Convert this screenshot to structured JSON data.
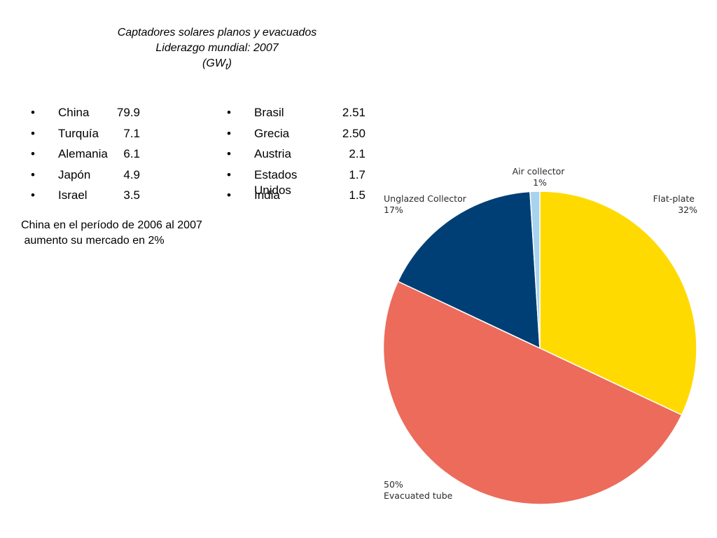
{
  "title": {
    "line1": "Captadores solares planos y evacuados",
    "line2": "Liderazgo mundial: 2007",
    "unit_open": "(GW",
    "unit_sub": "t",
    "unit_close": ")"
  },
  "bullet_symbol": "•",
  "countries_left": [
    {
      "name": "China",
      "value": "79.9"
    },
    {
      "name": "Turquía",
      "value": "7.1"
    },
    {
      "name": "Alemania",
      "value": "6.1"
    },
    {
      "name": "Japón",
      "value": "4.9"
    },
    {
      "name": "Israel",
      "value": "3.5"
    }
  ],
  "countries_right": [
    {
      "name": "Brasil",
      "value": "2.51"
    },
    {
      "name": "Grecia",
      "value": "2.50"
    },
    {
      "name": "Austria",
      "value": "2.1"
    },
    {
      "name": "Estados Unidos",
      "value": "1.7"
    },
    {
      "name": "India",
      "value": "1.5"
    }
  ],
  "note": {
    "line1": "China en el período de 2006 al 2007",
    "line2": " aumento su mercado en 2%"
  },
  "chart_data": {
    "type": "pie",
    "start_angle_deg": 0,
    "direction": "clockwise",
    "slices": [
      {
        "label": "Flat-plate",
        "value": 32,
        "percent_label": "32%",
        "color": "#FFDA00"
      },
      {
        "label": "Evacuated tube",
        "value": 50,
        "percent_label": "50%",
        "color": "#EC6B5A"
      },
      {
        "label": "Unglazed Collector",
        "value": 17,
        "percent_label": "17%",
        "color": "#003F75"
      },
      {
        "label": "Air collector",
        "value": 1,
        "percent_label": "1%",
        "color": "#A8D3EE"
      }
    ],
    "slice_border_color": "#FFFFFF",
    "label_color": "#2B2B2B"
  }
}
